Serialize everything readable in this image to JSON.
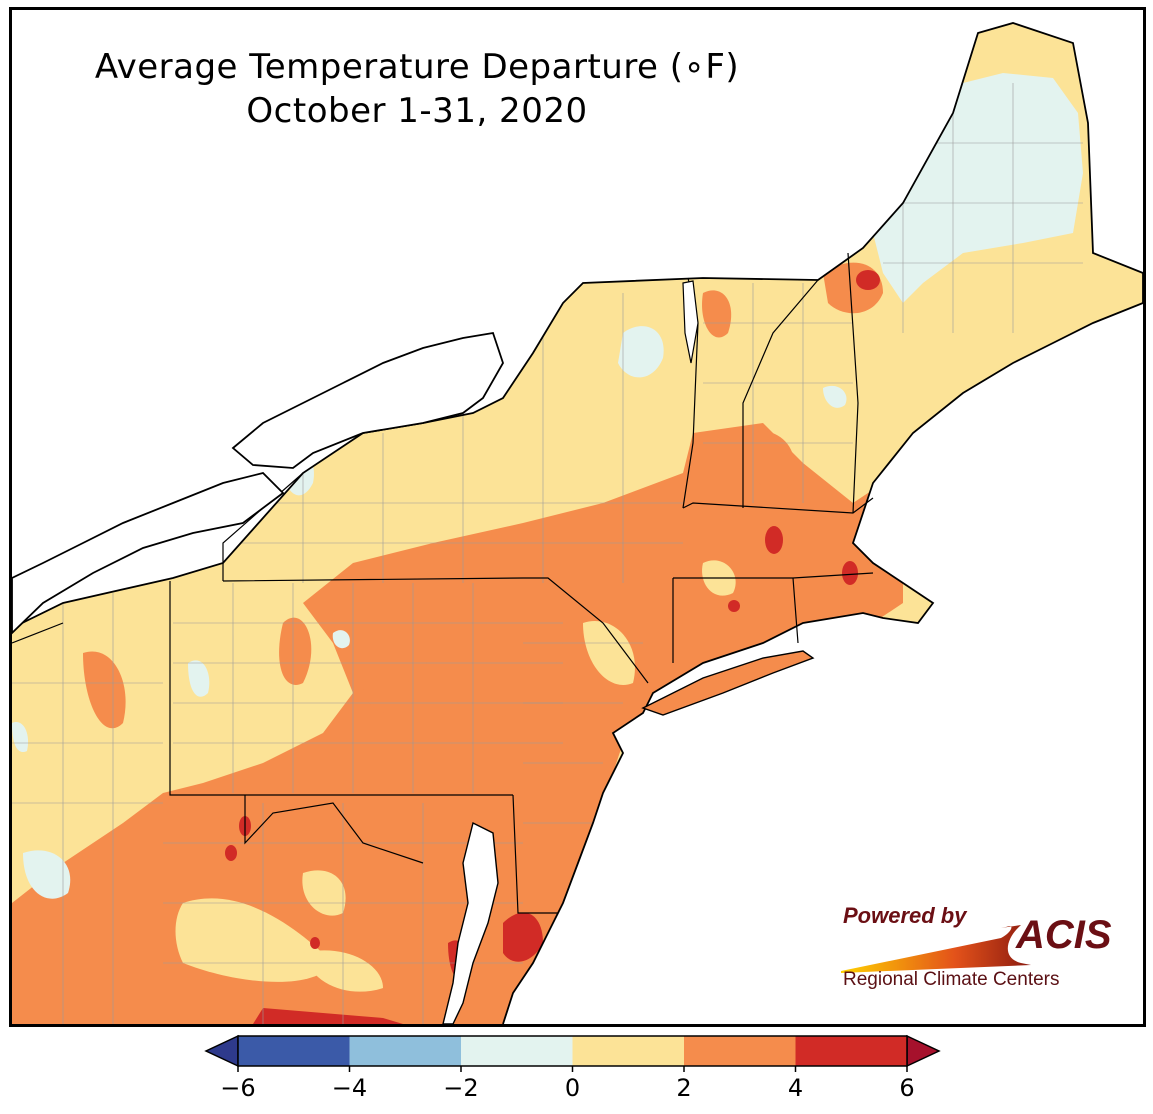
{
  "title": {
    "line1": "Average Temperature Departure (∘F)",
    "line2": "October 1-31, 2020"
  },
  "logo": {
    "powered_by": "Powered by",
    "acis": "ACIS",
    "subtitle": "Regional Climate Centers"
  },
  "legend": {
    "bins": [
      {
        "from": -6,
        "to": -4,
        "color": "#3b5aa8"
      },
      {
        "from": -4,
        "to": -2,
        "color": "#8fbfdc"
      },
      {
        "from": -2,
        "to": 0,
        "color": "#e3f3ef"
      },
      {
        "from": 0,
        "to": 2,
        "color": "#fce397"
      },
      {
        "from": 2,
        "to": 4,
        "color": "#f58c4c"
      },
      {
        "from": 4,
        "to": 6,
        "color": "#d12b26"
      }
    ],
    "under_color": "#2e3a8c",
    "over_color": "#a6112c",
    "ticks": [
      "−6",
      "−4",
      "−2",
      "0",
      "2",
      "4",
      "6"
    ]
  },
  "map": {
    "region": "Northeast United States",
    "water_color": "#ffffff",
    "boundary_color": "#000000",
    "county_line_color": "#9a9a9a"
  }
}
